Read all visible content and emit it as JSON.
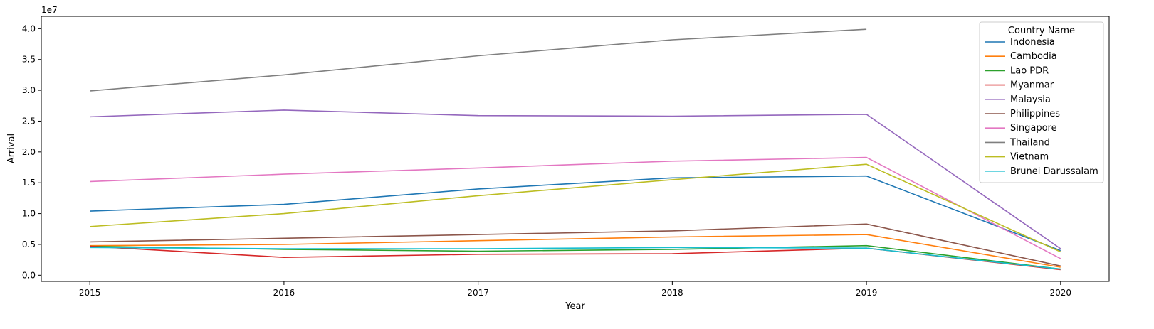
{
  "chart_data": {
    "type": "line",
    "title": "",
    "xlabel": "Year",
    "ylabel": "Arrival",
    "y_offset_text": "1e7",
    "x": [
      2015,
      2016,
      2017,
      2018,
      2019,
      2020
    ],
    "xlim": [
      2014.75,
      2020.25
    ],
    "ylim": [
      -1000000,
      42000000
    ],
    "y_ticks": [
      0,
      5000000,
      10000000,
      15000000,
      20000000,
      25000000,
      30000000,
      35000000,
      40000000
    ],
    "y_tick_labels": [
      "0.0",
      "0.5",
      "1.0",
      "1.5",
      "2.0",
      "2.5",
      "3.0",
      "3.5",
      "4.0"
    ],
    "x_tick_labels": [
      "2015",
      "2016",
      "2017",
      "2018",
      "2019",
      "2020"
    ],
    "grid": false,
    "legend_title": "Country Name",
    "legend_position": "top-right",
    "series": [
      {
        "name": "Indonesia",
        "color": "#1f77b4",
        "values": [
          10400000,
          11500000,
          14000000,
          15800000,
          16100000,
          4000000
        ]
      },
      {
        "name": "Cambodia",
        "color": "#ff7f0e",
        "values": [
          4800000,
          5000000,
          5600000,
          6200000,
          6600000,
          1300000
        ]
      },
      {
        "name": "Lao PDR",
        "color": "#2ca02c",
        "values": [
          4700000,
          4200000,
          3900000,
          4200000,
          4800000,
          1000000
        ]
      },
      {
        "name": "Myanmar",
        "color": "#d62728",
        "values": [
          4700000,
          2900000,
          3400000,
          3500000,
          4400000,
          900000
        ]
      },
      {
        "name": "Malaysia",
        "color": "#9467bd",
        "values": [
          25700000,
          26800000,
          25900000,
          25800000,
          26100000,
          4300000
        ]
      },
      {
        "name": "Philippines",
        "color": "#8c564b",
        "values": [
          5400000,
          6000000,
          6600000,
          7200000,
          8300000,
          1500000
        ]
      },
      {
        "name": "Singapore",
        "color": "#e377c2",
        "values": [
          15200000,
          16400000,
          17400000,
          18500000,
          19100000,
          2700000
        ]
      },
      {
        "name": "Thailand",
        "color": "#7f7f7f",
        "values": [
          29900000,
          32500000,
          35600000,
          38200000,
          39900000,
          null
        ]
      },
      {
        "name": "Vietnam",
        "color": "#bcbd22",
        "values": [
          7900000,
          10000000,
          12900000,
          15500000,
          18000000,
          3800000
        ]
      },
      {
        "name": "Brunei Darussalam",
        "color": "#17becf",
        "values": [
          4500000,
          4300000,
          4300000,
          4500000,
          4400000,
          1000000
        ]
      }
    ]
  }
}
